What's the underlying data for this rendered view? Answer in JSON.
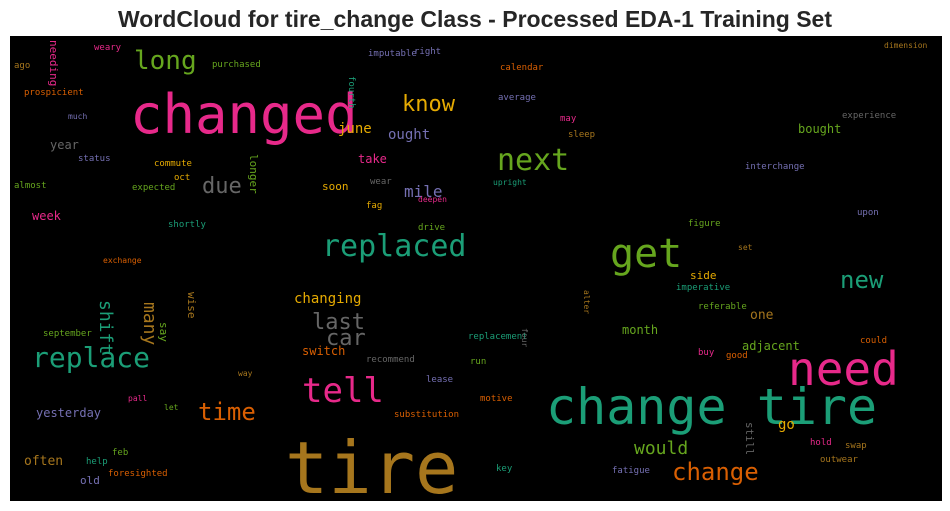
{
  "chart_data": {
    "type": "wordcloud",
    "title": "WordCloud for tire_change Class - Processed EDA-1 Training Set",
    "palette": [
      "#1b9e77",
      "#d95f02",
      "#7570b3",
      "#e7298a",
      "#66a61e",
      "#e6ab02",
      "#a6761d",
      "#666666"
    ],
    "words": [
      {
        "text": "tire",
        "color": "#a6761d"
      },
      {
        "text": "changed",
        "color": "#e7298a"
      },
      {
        "text": "change tire",
        "color": "#1b9e77"
      },
      {
        "text": "need",
        "color": "#e7298a"
      },
      {
        "text": "get",
        "color": "#66a61e"
      },
      {
        "text": "replaced",
        "color": "#1b9e77"
      },
      {
        "text": "replace",
        "color": "#1b9e77"
      },
      {
        "text": "next",
        "color": "#66a61e"
      },
      {
        "text": "tell",
        "color": "#e7298a"
      },
      {
        "text": "change",
        "color": "#d95f02"
      },
      {
        "text": "time",
        "color": "#d95f02"
      },
      {
        "text": "new",
        "color": "#1b9e77"
      },
      {
        "text": "long",
        "color": "#66a61e"
      },
      {
        "text": "know",
        "color": "#e6ab02"
      },
      {
        "text": "due",
        "color": "#666666"
      },
      {
        "text": "last",
        "color": "#666666"
      },
      {
        "text": "car",
        "color": "#666666"
      },
      {
        "text": "would",
        "color": "#66a61e"
      },
      {
        "text": "shift",
        "color": "#1b9e77"
      },
      {
        "text": "many",
        "color": "#a6761d"
      },
      {
        "text": "mile",
        "color": "#7570b3"
      },
      {
        "text": "changing",
        "color": "#e6ab02"
      },
      {
        "text": "ought",
        "color": "#7570b3"
      },
      {
        "text": "june",
        "color": "#e6ab02"
      },
      {
        "text": "bought",
        "color": "#66a61e"
      },
      {
        "text": "go",
        "color": "#e6ab02"
      },
      {
        "text": "one",
        "color": "#a6761d"
      },
      {
        "text": "month",
        "color": "#66a61e"
      },
      {
        "text": "adjacent",
        "color": "#66a61e"
      },
      {
        "text": "yesterday",
        "color": "#7570b3"
      },
      {
        "text": "often",
        "color": "#a6761d"
      },
      {
        "text": "week",
        "color": "#e7298a"
      },
      {
        "text": "year",
        "color": "#666666"
      },
      {
        "text": "take",
        "color": "#e7298a"
      },
      {
        "text": "soon",
        "color": "#e6ab02"
      },
      {
        "text": "switch",
        "color": "#d95f02"
      },
      {
        "text": "side",
        "color": "#e6ab02"
      },
      {
        "text": "still",
        "color": "#666666"
      },
      {
        "text": "longer",
        "color": "#66a61e"
      },
      {
        "text": "needing",
        "color": "#e7298a"
      },
      {
        "text": "old",
        "color": "#7570b3"
      },
      {
        "text": "say",
        "color": "#66a61e"
      },
      {
        "text": "wise",
        "color": "#a6761d"
      },
      {
        "text": "fourth",
        "color": "#1b9e77"
      },
      {
        "text": "imputable",
        "color": "#7570b3"
      },
      {
        "text": "right",
        "color": "#7570b3"
      },
      {
        "text": "weary",
        "color": "#e7298a"
      },
      {
        "text": "ago",
        "color": "#a6761d"
      },
      {
        "text": "prospicient",
        "color": "#d95f02"
      },
      {
        "text": "much",
        "color": "#7570b3"
      },
      {
        "text": "purchased",
        "color": "#66a61e"
      },
      {
        "text": "calendar",
        "color": "#d95f02"
      },
      {
        "text": "average",
        "color": "#7570b3"
      },
      {
        "text": "dimension",
        "color": "#a6761d"
      },
      {
        "text": "experience",
        "color": "#666666"
      },
      {
        "text": "may",
        "color": "#e7298a"
      },
      {
        "text": "sleep",
        "color": "#a6761d"
      },
      {
        "text": "interchange",
        "color": "#7570b3"
      },
      {
        "text": "status",
        "color": "#7570b3"
      },
      {
        "text": "commute",
        "color": "#e6ab02"
      },
      {
        "text": "oct",
        "color": "#e6ab02"
      },
      {
        "text": "expected",
        "color": "#66a61e"
      },
      {
        "text": "almost",
        "color": "#66a61e"
      },
      {
        "text": "wear",
        "color": "#666666"
      },
      {
        "text": "upright",
        "color": "#1b9e77"
      },
      {
        "text": "fag",
        "color": "#e6ab02"
      },
      {
        "text": "deepen",
        "color": "#e7298a"
      },
      {
        "text": "drive",
        "color": "#66a61e"
      },
      {
        "text": "shortly",
        "color": "#1b9e77"
      },
      {
        "text": "figure",
        "color": "#66a61e"
      },
      {
        "text": "upon",
        "color": "#7570b3"
      },
      {
        "text": "set",
        "color": "#a6761d"
      },
      {
        "text": "exchange",
        "color": "#d95f02"
      },
      {
        "text": "imperative",
        "color": "#1b9e77"
      },
      {
        "text": "referable",
        "color": "#66a61e"
      },
      {
        "text": "alter",
        "color": "#a6761d"
      },
      {
        "text": "september",
        "color": "#66a61e"
      },
      {
        "text": "replacement",
        "color": "#1b9e77"
      },
      {
        "text": "four",
        "color": "#666666"
      },
      {
        "text": "could",
        "color": "#d95f02"
      },
      {
        "text": "buy",
        "color": "#e7298a"
      },
      {
        "text": "good",
        "color": "#d95f02"
      },
      {
        "text": "recommend",
        "color": "#666666"
      },
      {
        "text": "run",
        "color": "#66a61e"
      },
      {
        "text": "way",
        "color": "#a6761d"
      },
      {
        "text": "lease",
        "color": "#7570b3"
      },
      {
        "text": "pall",
        "color": "#e7298a"
      },
      {
        "text": "let",
        "color": "#66a61e"
      },
      {
        "text": "motive",
        "color": "#d95f02"
      },
      {
        "text": "substitution",
        "color": "#d95f02"
      },
      {
        "text": "hold",
        "color": "#e7298a"
      },
      {
        "text": "swap",
        "color": "#a6761d"
      },
      {
        "text": "outwear",
        "color": "#a6761d"
      },
      {
        "text": "feb",
        "color": "#66a61e"
      },
      {
        "text": "help",
        "color": "#1b9e77"
      },
      {
        "text": "foresighted",
        "color": "#d95f02"
      },
      {
        "text": "key",
        "color": "#1b9e77"
      },
      {
        "text": "fatigue",
        "color": "#7570b3"
      }
    ]
  }
}
